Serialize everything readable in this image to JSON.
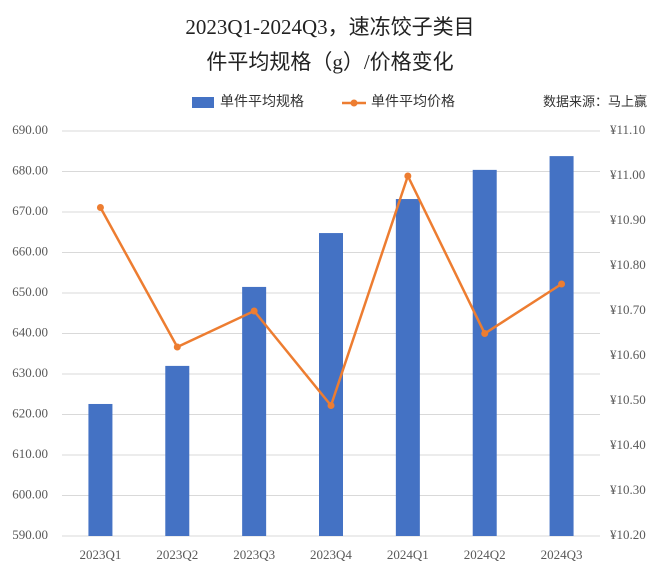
{
  "chart_data": {
    "type": "bar_line",
    "title": "2023Q1-2024Q3，速冻饺子类目",
    "subtitle": "件平均规格（g）/价格变化",
    "source": "数据来源：马上赢",
    "categories": [
      "2023Q1",
      "2023Q2",
      "2023Q3",
      "2023Q4",
      "2024Q1",
      "2024Q2",
      "2024Q3"
    ],
    "series": [
      {
        "name": "单件平均规格",
        "type": "bar",
        "color": "#4472c4",
        "values": [
          622.6,
          632.0,
          651.5,
          664.8,
          673.2,
          680.4,
          683.8
        ]
      },
      {
        "name": "单件平均价格",
        "type": "line",
        "axis": "y2",
        "color": "#ed7d31",
        "values": [
          10.93,
          10.62,
          10.7,
          10.49,
          11.0,
          10.65,
          10.76
        ]
      }
    ],
    "ylim": [
      590,
      690
    ],
    "yticks": [
      {
        "value": 590,
        "label": "590.00"
      },
      {
        "value": 600,
        "label": "600.00"
      },
      {
        "value": 610,
        "label": "610.00"
      },
      {
        "value": 620,
        "label": "620.00"
      },
      {
        "value": 630,
        "label": "630.00"
      },
      {
        "value": 640,
        "label": "640.00"
      },
      {
        "value": 650,
        "label": "650.00"
      },
      {
        "value": 660,
        "label": "660.00"
      },
      {
        "value": 670,
        "label": "670.00"
      },
      {
        "value": 680,
        "label": "680.00"
      },
      {
        "value": 690,
        "label": "690.00"
      }
    ],
    "y2lim": [
      10.2,
      11.1
    ],
    "y2ticks": [
      {
        "value": 10.2,
        "label": "¥10.20"
      },
      {
        "value": 10.3,
        "label": "¥10.30"
      },
      {
        "value": 10.4,
        "label": "¥10.40"
      },
      {
        "value": 10.5,
        "label": "¥10.50"
      },
      {
        "value": 10.6,
        "label": "¥10.60"
      },
      {
        "value": 10.7,
        "label": "¥10.70"
      },
      {
        "value": 10.8,
        "label": "¥10.80"
      },
      {
        "value": 10.9,
        "label": "¥10.90"
      },
      {
        "value": 11.0,
        "label": "¥11.00"
      },
      {
        "value": 11.1,
        "label": "¥11.10"
      }
    ],
    "grid": true
  }
}
